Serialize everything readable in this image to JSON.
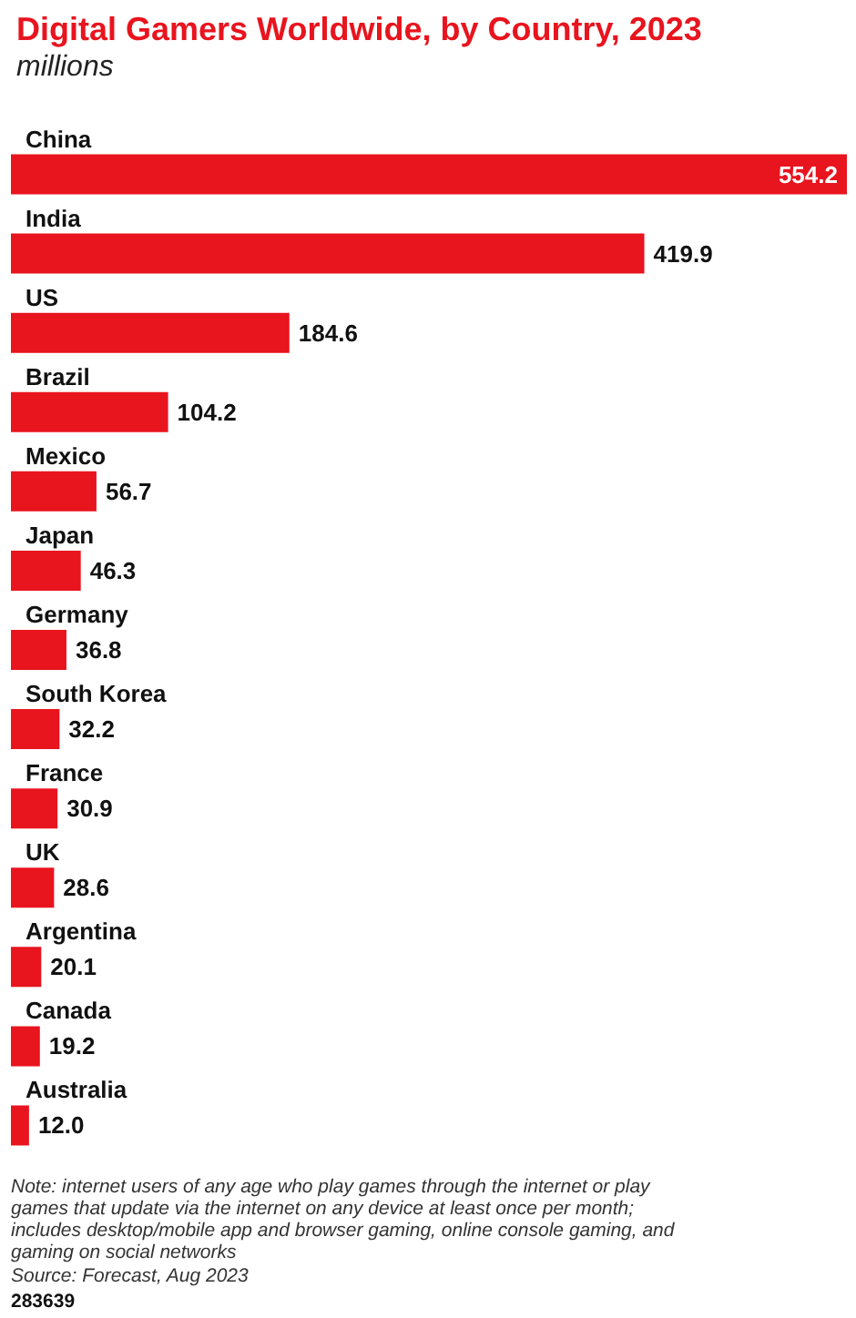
{
  "chart_data": {
    "type": "bar",
    "orientation": "horizontal",
    "title": "Digital Gamers Worldwide, by Country, 2023",
    "subtitle": "millions",
    "categories": [
      "China",
      "India",
      "US",
      "Brazil",
      "Mexico",
      "Japan",
      "Germany",
      "South Korea",
      "France",
      "UK",
      "Argentina",
      "Canada",
      "Australia"
    ],
    "values": [
      554.2,
      419.9,
      184.6,
      104.2,
      56.7,
      46.3,
      36.8,
      32.2,
      30.9,
      28.6,
      20.1,
      19.2,
      12.0
    ],
    "value_labels": [
      "554.2",
      "419.9",
      "184.6",
      "104.2",
      "56.7",
      "46.3",
      "36.8",
      "32.2",
      "30.9",
      "28.6",
      "20.1",
      "19.2",
      "12.0"
    ],
    "color": "#e8141e",
    "annotations": [
      "Note: internet users of any age who play games through the internet or play games that update via the internet on any device at least once per month; includes desktop/mobile app and browser gaming, online console gaming, and gaming on social networks",
      "Source: Forecast, Aug 2023",
      "283639"
    ]
  }
}
